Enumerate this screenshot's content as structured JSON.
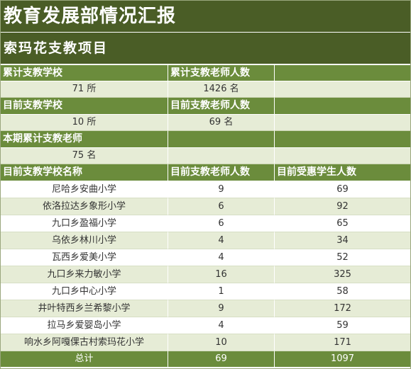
{
  "page": {
    "title": "教育发展部情况汇报",
    "subtitle": "索玛花支教项目"
  },
  "summary": {
    "cumulative_schools_label": "累计支教学校",
    "cumulative_teachers_label": "累计支教老师人数",
    "cumulative_schools_value": "71 所",
    "cumulative_teachers_value": "1426 名",
    "current_schools_label": "目前支教学校",
    "current_teachers_label": "目前支教老师人数",
    "current_schools_value": "10 所",
    "current_teachers_value": "69 名",
    "period_teachers_label": "本期累计支教老师",
    "period_teachers_value": "75 名"
  },
  "table": {
    "headers": [
      "目前支教学校名称",
      "目前支教老师人数",
      "目前受惠学生人数"
    ],
    "rows": [
      {
        "school": "尼哈乡安曲小学",
        "teachers": "9",
        "students": "69"
      },
      {
        "school": "依洛拉达乡象形小学",
        "teachers": "6",
        "students": "92"
      },
      {
        "school": "九口乡盈福小学",
        "teachers": "6",
        "students": "65"
      },
      {
        "school": "乌依乡林川小学",
        "teachers": "4",
        "students": "34"
      },
      {
        "school": "瓦西乡爱美小学",
        "teachers": "4",
        "students": "52"
      },
      {
        "school": "九口乡来力敏小学",
        "teachers": "16",
        "students": "325"
      },
      {
        "school": "九口乡中心小学",
        "teachers": "1",
        "students": "58"
      },
      {
        "school": "井叶特西乡兰希黎小学",
        "teachers": "9",
        "students": "172"
      },
      {
        "school": "拉马乡爱婴岛小学",
        "teachers": "4",
        "students": "59"
      },
      {
        "school": "响水乡阿嘎倮古村索玛花小学",
        "teachers": "10",
        "students": "171"
      }
    ],
    "total": {
      "label": "总计",
      "teachers": "69",
      "students": "1097"
    }
  }
}
